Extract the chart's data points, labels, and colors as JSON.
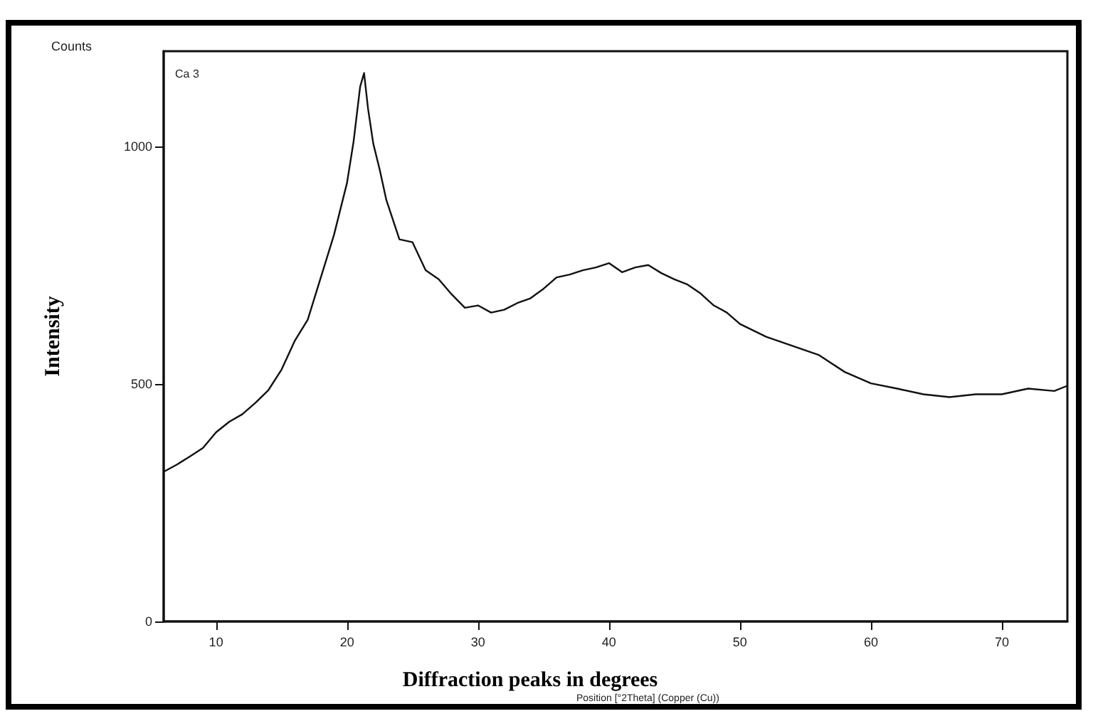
{
  "chart_data": {
    "type": "line",
    "xlabel": "Diffraction peaks in degrees",
    "ylabel": "Intensity",
    "annotations": [
      "Counts",
      "Ca 3",
      "Position [°2Theta] (Copper (Cu))"
    ],
    "x": [
      6,
      7,
      8,
      9,
      10,
      11,
      12,
      13,
      14,
      15,
      16,
      17,
      18,
      19,
      20,
      20.5,
      21,
      21.3,
      21.6,
      22,
      22.5,
      23,
      24,
      25,
      26,
      27,
      28,
      29,
      30,
      31,
      32,
      33,
      34,
      35,
      36,
      37,
      38,
      39,
      40,
      41,
      42,
      43,
      44,
      45,
      46,
      47,
      48,
      49,
      50,
      52,
      54,
      56,
      58,
      60,
      62,
      64,
      66,
      68,
      70,
      72,
      74,
      75
    ],
    "series": [
      {
        "color": "#111111",
        "values": [
          315,
          330,
          347,
          365,
          398,
          420,
          436,
          460,
          487,
          530,
          590,
          635,
          724,
          813,
          923,
          1010,
          1125,
          1154,
          1080,
          1006,
          950,
          887,
          804,
          798,
          739,
          720,
          688,
          660,
          665,
          650,
          656,
          670,
          680,
          700,
          724,
          730,
          739,
          745,
          754,
          735,
          745,
          750,
          733,
          720,
          709,
          690,
          665,
          650,
          626,
          599,
          580,
          561,
          525,
          501,
          490,
          478,
          472,
          478,
          478,
          490,
          485,
          496
        ]
      }
    ],
    "xlim": [
      6,
      75
    ],
    "xticks": [
      10,
      20,
      30,
      40,
      50,
      60,
      70
    ],
    "ylim": [
      0,
      1200
    ],
    "yticks": [
      0,
      500,
      1000
    ],
    "grid": false,
    "marker": "none",
    "line_style": "solid"
  }
}
